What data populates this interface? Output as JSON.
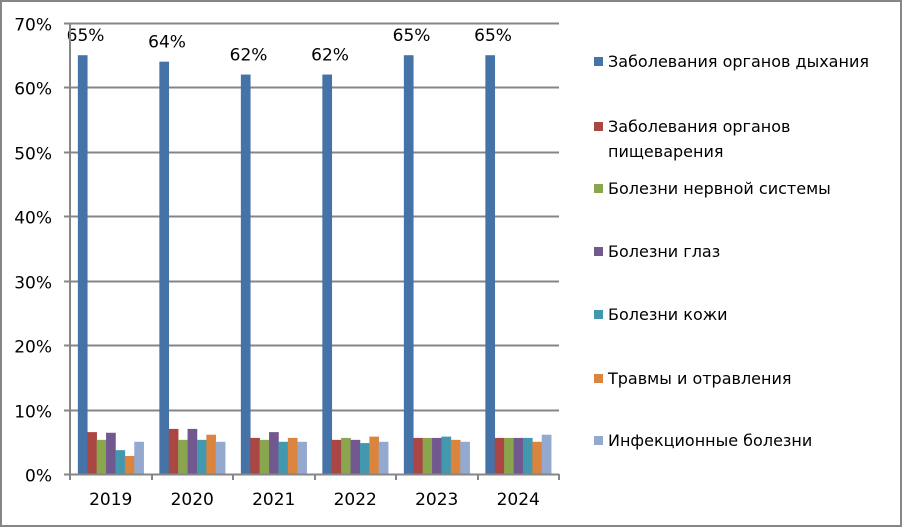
{
  "chart_data": {
    "type": "bar",
    "title": "",
    "xlabel": "",
    "ylabel": "",
    "ylim": [
      0,
      70
    ],
    "yticks": [
      "0%",
      "10%",
      "20%",
      "30%",
      "40%",
      "50%",
      "60%",
      "70%"
    ],
    "grid": true,
    "legend_position": "right",
    "categories": [
      "2019",
      "2020",
      "2021",
      "2022",
      "2023",
      "2024"
    ],
    "series": [
      {
        "name": "Заболевания органов дыхания",
        "color": "#4572A7",
        "values": [
          65,
          64,
          62,
          62,
          65,
          65
        ],
        "data_labels": [
          "65%",
          "64%",
          "62%",
          "62%",
          "65%",
          "65%"
        ]
      },
      {
        "name": "Заболевания органов пищеварения",
        "color": "#AA4643",
        "values": [
          6.5,
          7.0,
          5.6,
          5.3,
          5.6,
          5.6
        ]
      },
      {
        "name": "Болезни нервной системы",
        "color": "#89A54E",
        "values": [
          5.3,
          5.3,
          5.3,
          5.6,
          5.6,
          5.6
        ]
      },
      {
        "name": "Болезни глаз",
        "color": "#71588F",
        "values": [
          6.4,
          7.0,
          6.5,
          5.3,
          5.6,
          5.6
        ]
      },
      {
        "name": "Болезни кожи",
        "color": "#4198AF",
        "values": [
          3.7,
          5.3,
          5.0,
          4.8,
          5.8,
          5.6
        ]
      },
      {
        "name": "Травмы и отравления",
        "color": "#DB843D",
        "values": [
          2.8,
          6.1,
          5.6,
          5.8,
          5.3,
          5.0
        ]
      },
      {
        "name": "Инфекционные болезни",
        "color": "#93A9CF",
        "values": [
          5.0,
          5.0,
          5.0,
          5.0,
          5.0,
          6.1
        ]
      }
    ]
  },
  "legend": {
    "items": [
      {
        "label": "Заболевания органов дыхания",
        "color": "#4572A7"
      },
      {
        "label": "Заболевания органов пищеварения",
        "color": "#AA4643"
      },
      {
        "label": "Болезни нервной системы",
        "color": "#89A54E"
      },
      {
        "label": "Болезни глаз",
        "color": "#71588F"
      },
      {
        "label": "Болезни кожи",
        "color": "#4198AF"
      },
      {
        "label": "Травмы и отравления",
        "color": "#DB843D"
      },
      {
        "label": "Инфекционные болезни",
        "color": "#93A9CF"
      }
    ]
  }
}
